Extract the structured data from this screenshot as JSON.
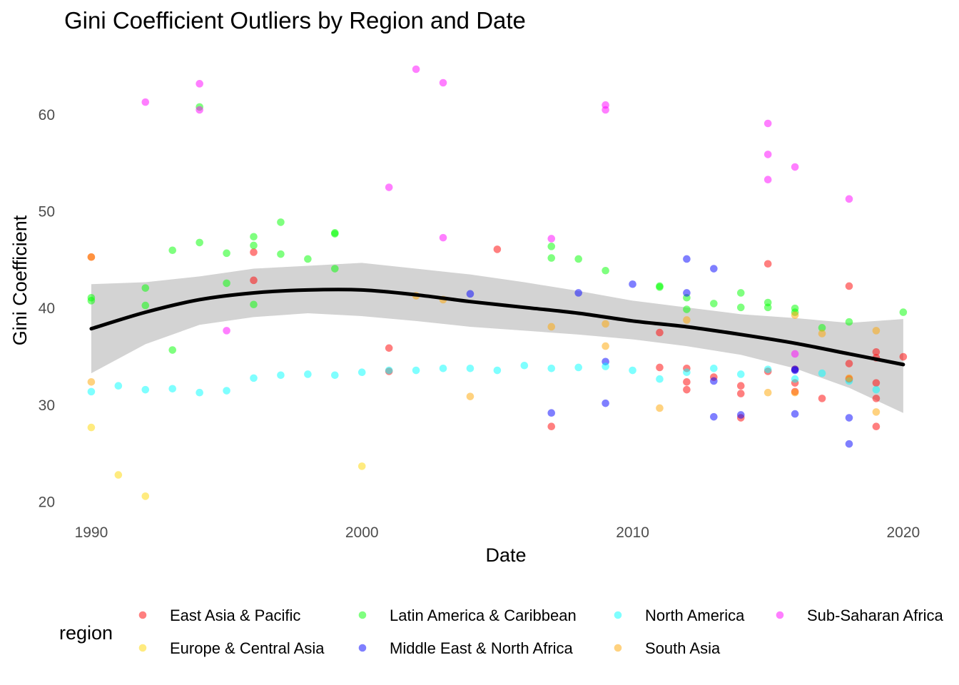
{
  "chart_data": {
    "type": "scatter",
    "title": "Gini Coefficient Outliers by Region and Date",
    "xlabel": "Date",
    "ylabel": "Gini Coefficient",
    "xlim": [
      1989.0,
      2020.9
    ],
    "ylim": [
      18.2,
      66.1
    ],
    "x_ticks": [
      "1990",
      "2000",
      "2010",
      "2020"
    ],
    "y_ticks": [
      "20",
      "30",
      "40",
      "50",
      "60"
    ],
    "grid": false,
    "legend": {
      "title": "region",
      "position": "bottom"
    },
    "series": [
      {
        "name": "East Asia & Pacific",
        "color": "#ff0000",
        "points": [
          [
            1990,
            45.3
          ],
          [
            1996,
            45.8
          ],
          [
            1996,
            42.9
          ],
          [
            2001,
            35.9
          ],
          [
            2001,
            33.5
          ],
          [
            2005,
            46.1
          ],
          [
            2007,
            27.8
          ],
          [
            2011,
            37.5
          ],
          [
            2011,
            33.9
          ],
          [
            2012,
            33.8
          ],
          [
            2012,
            32.4
          ],
          [
            2012,
            31.6
          ],
          [
            2013,
            32.9
          ],
          [
            2014,
            32.0
          ],
          [
            2014,
            31.2
          ],
          [
            2014,
            28.7
          ],
          [
            2015,
            44.6
          ],
          [
            2015,
            33.5
          ],
          [
            2016,
            33.7
          ],
          [
            2016,
            32.3
          ],
          [
            2016,
            31.4
          ],
          [
            2017,
            30.7
          ],
          [
            2018,
            42.3
          ],
          [
            2018,
            34.3
          ],
          [
            2018,
            32.7
          ],
          [
            2019,
            35.5
          ],
          [
            2019,
            34.9
          ],
          [
            2019,
            32.3
          ],
          [
            2019,
            30.7
          ],
          [
            2019,
            27.8
          ],
          [
            2020,
            35.0
          ]
        ]
      },
      {
        "name": "Europe & Central Asia",
        "color": "#ffd700",
        "points": [
          [
            1990,
            27.7
          ],
          [
            1991,
            22.8
          ],
          [
            1992,
            20.6
          ],
          [
            2000,
            23.7
          ]
        ]
      },
      {
        "name": "Latin America & Caribbean",
        "color": "#00ff00",
        "points": [
          [
            1990,
            41.1
          ],
          [
            1990,
            40.8
          ],
          [
            1992,
            42.1
          ],
          [
            1992,
            40.3
          ],
          [
            1993,
            46.0
          ],
          [
            1993,
            35.7
          ],
          [
            1994,
            60.8
          ],
          [
            1994,
            46.8
          ],
          [
            1995,
            45.7
          ],
          [
            1995,
            42.6
          ],
          [
            1996,
            47.4
          ],
          [
            1996,
            46.5
          ],
          [
            1996,
            40.4
          ],
          [
            1997,
            48.9
          ],
          [
            1997,
            45.6
          ],
          [
            1998,
            45.1
          ],
          [
            1999,
            47.8
          ],
          [
            1999,
            47.7
          ],
          [
            1999,
            44.1
          ],
          [
            2007,
            46.4
          ],
          [
            2007,
            45.2
          ],
          [
            2008,
            45.1
          ],
          [
            2009,
            43.9
          ],
          [
            2011,
            42.3
          ],
          [
            2011,
            42.2
          ],
          [
            2012,
            41.1
          ],
          [
            2012,
            39.9
          ],
          [
            2013,
            40.5
          ],
          [
            2014,
            41.6
          ],
          [
            2014,
            40.1
          ],
          [
            2015,
            40.6
          ],
          [
            2015,
            40.1
          ],
          [
            2016,
            40.0
          ],
          [
            2016,
            39.6
          ],
          [
            2017,
            38.0
          ],
          [
            2018,
            38.6
          ],
          [
            2020,
            39.6
          ]
        ]
      },
      {
        "name": "Middle East & North Africa",
        "color": "#0000ff",
        "points": [
          [
            2004,
            41.5
          ],
          [
            2007,
            29.2
          ],
          [
            2008,
            41.6
          ],
          [
            2009,
            34.5
          ],
          [
            2009,
            30.2
          ],
          [
            2010,
            42.5
          ],
          [
            2012,
            45.1
          ],
          [
            2012,
            41.6
          ],
          [
            2013,
            44.1
          ],
          [
            2013,
            32.5
          ],
          [
            2013,
            28.8
          ],
          [
            2014,
            29.0
          ],
          [
            2016,
            33.7
          ],
          [
            2016,
            33.6
          ],
          [
            2016,
            29.1
          ],
          [
            2018,
            28.7
          ],
          [
            2018,
            26.0
          ]
        ]
      },
      {
        "name": "North America",
        "color": "#00ffff",
        "points": [
          [
            1990,
            31.4
          ],
          [
            1991,
            32.0
          ],
          [
            1992,
            31.6
          ],
          [
            1993,
            31.7
          ],
          [
            1994,
            31.3
          ],
          [
            1995,
            31.5
          ],
          [
            1996,
            32.8
          ],
          [
            1997,
            33.1
          ],
          [
            1998,
            33.2
          ],
          [
            1999,
            33.1
          ],
          [
            2000,
            33.4
          ],
          [
            2001,
            33.6
          ],
          [
            2002,
            33.6
          ],
          [
            2003,
            33.8
          ],
          [
            2004,
            33.8
          ],
          [
            2005,
            33.6
          ],
          [
            2006,
            34.1
          ],
          [
            2007,
            33.8
          ],
          [
            2008,
            33.9
          ],
          [
            2009,
            34.0
          ],
          [
            2010,
            33.6
          ],
          [
            2011,
            32.7
          ],
          [
            2012,
            33.4
          ],
          [
            2013,
            33.8
          ],
          [
            2014,
            33.2
          ],
          [
            2015,
            33.7
          ],
          [
            2016,
            32.7
          ],
          [
            2017,
            33.3
          ],
          [
            2018,
            32.5
          ],
          [
            2019,
            31.6
          ]
        ]
      },
      {
        "name": "South Asia",
        "color": "#ffa500",
        "points": [
          [
            1990,
            45.3
          ],
          [
            1990,
            32.4
          ],
          [
            2002,
            41.3
          ],
          [
            2003,
            40.9
          ],
          [
            2004,
            30.9
          ],
          [
            2007,
            38.1
          ],
          [
            2009,
            38.4
          ],
          [
            2009,
            36.1
          ],
          [
            2011,
            29.7
          ],
          [
            2012,
            38.8
          ],
          [
            2015,
            31.3
          ],
          [
            2016,
            39.3
          ],
          [
            2016,
            31.3
          ],
          [
            2017,
            37.4
          ],
          [
            2018,
            32.8
          ],
          [
            2019,
            37.7
          ],
          [
            2019,
            29.3
          ]
        ]
      },
      {
        "name": "Sub-Saharan Africa",
        "color": "#ff00ff",
        "points": [
          [
            1992,
            61.3
          ],
          [
            1994,
            63.2
          ],
          [
            1994,
            60.5
          ],
          [
            1995,
            37.7
          ],
          [
            2001,
            52.5
          ],
          [
            2002,
            64.7
          ],
          [
            2003,
            63.3
          ],
          [
            2003,
            47.3
          ],
          [
            2007,
            47.2
          ],
          [
            2009,
            61.0
          ],
          [
            2009,
            60.5
          ],
          [
            2015,
            59.1
          ],
          [
            2015,
            55.9
          ],
          [
            2015,
            53.3
          ],
          [
            2016,
            54.6
          ],
          [
            2016,
            35.3
          ],
          [
            2018,
            51.3
          ]
        ]
      }
    ],
    "trend": {
      "method": "loess",
      "line_color": "#000000",
      "band_color": "#d3d3d3",
      "x": [
        1990,
        1992,
        1994,
        1996,
        1998,
        2000,
        2002,
        2004,
        2006,
        2008,
        2010,
        2012,
        2014,
        2016,
        2018,
        2020
      ],
      "fit": [
        37.9,
        39.6,
        40.9,
        41.6,
        41.9,
        41.9,
        41.4,
        40.7,
        40.1,
        39.5,
        38.7,
        38.1,
        37.3,
        36.4,
        35.3,
        34.2
      ],
      "lower": [
        33.3,
        36.3,
        38.3,
        39.1,
        39.5,
        39.2,
        38.7,
        38.1,
        37.7,
        37.3,
        36.8,
        36.1,
        35.2,
        33.8,
        31.8,
        29.2
      ],
      "upper": [
        42.5,
        42.7,
        43.3,
        44.1,
        44.4,
        44.7,
        44.1,
        43.5,
        42.7,
        41.8,
        40.8,
        40.1,
        39.4,
        39.0,
        38.5,
        38.9
      ]
    }
  }
}
